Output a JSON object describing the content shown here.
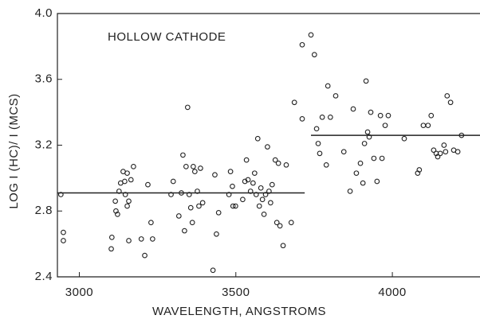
{
  "chart_data": {
    "type": "scatter",
    "annotation": "HOLLOW CATHODE",
    "x_label": "WAVELENGTH, ANGSTROMS",
    "y_label": "LOG I (HC)/ I (MCS)",
    "xlim": [
      2930,
      4280
    ],
    "ylim": [
      2.4,
      4.0
    ],
    "xticks": [
      3000,
      3500,
      4000
    ],
    "yticks": [
      2.4,
      2.8,
      3.2,
      3.6,
      {
        "value": 4,
        "label": "4.0"
      }
    ],
    "color": "#222222",
    "x": [
      2941,
      2949,
      2949,
      3102,
      3104,
      3115,
      3117,
      3122,
      3127,
      3132,
      3140,
      3145,
      3147,
      3153,
      3153,
      3158,
      3165,
      3158,
      3173,
      3198,
      3209,
      3219,
      3229,
      3234,
      3293,
      3300,
      3318,
      3326,
      3331,
      3336,
      3341,
      3346,
      3351,
      3356,
      3361,
      3364,
      3369,
      3377,
      3382,
      3387,
      3394,
      3427,
      3433,
      3438,
      3445,
      3478,
      3483,
      3489,
      3491,
      3499,
      3522,
      3529,
      3534,
      3539,
      3547,
      3555,
      3560,
      3565,
      3570,
      3575,
      3580,
      3585,
      3590,
      3595,
      3601,
      3606,
      3611,
      3616,
      3626,
      3631,
      3636,
      3641,
      3651,
      3661,
      3677,
      3687,
      3712,
      3712,
      3740,
      3751,
      3758,
      3763,
      3768,
      3776,
      3789,
      3794,
      3802,
      3819,
      3845,
      3865,
      3875,
      3885,
      3898,
      3906,
      3911,
      3916,
      3921,
      3926,
      3931,
      3941,
      3951,
      3962,
      3967,
      3977,
      3987,
      4038,
      4081,
      4086,
      4099,
      4114,
      4124,
      4132,
      4140,
      4145,
      4153,
      4165,
      4170,
      4175,
      4186,
      4196,
      4209,
      4221
    ],
    "values": [
      2.9,
      2.67,
      2.62,
      2.57,
      2.64,
      2.86,
      2.8,
      2.78,
      2.92,
      2.97,
      3.04,
      2.98,
      2.9,
      3.03,
      2.83,
      2.86,
      2.99,
      2.62,
      3.07,
      2.63,
      2.53,
      2.96,
      2.73,
      2.63,
      2.9,
      2.98,
      2.77,
      2.91,
      3.14,
      2.68,
      3.07,
      3.43,
      2.9,
      2.82,
      2.73,
      3.07,
      3.04,
      2.92,
      2.83,
      3.06,
      2.85,
      2.44,
      3.02,
      2.66,
      2.79,
      2.9,
      3.04,
      2.95,
      2.83,
      2.83,
      2.87,
      2.98,
      3.11,
      2.99,
      2.92,
      2.97,
      3.03,
      2.9,
      3.24,
      2.83,
      2.94,
      2.87,
      2.78,
      2.9,
      3.19,
      2.92,
      2.85,
      2.96,
      3.11,
      2.73,
      3.09,
      2.71,
      2.59,
      3.08,
      2.73,
      3.46,
      3.36,
      3.81,
      3.87,
      3.75,
      3.3,
      3.21,
      3.15,
      3.37,
      3.08,
      3.56,
      3.37,
      3.5,
      3.16,
      2.92,
      3.42,
      3.03,
      3.09,
      2.97,
      3.21,
      3.59,
      3.28,
      3.25,
      3.4,
      3.12,
      2.98,
      3.38,
      3.12,
      3.32,
      3.38,
      3.24,
      3.03,
      3.05,
      3.32,
      3.32,
      3.38,
      3.17,
      3.15,
      3.13,
      3.15,
      3.2,
      3.16,
      3.5,
      3.46,
      3.17,
      3.16,
      3.26
    ],
    "lines": [
      {
        "x": [
          2930,
          3720
        ],
        "values": [
          2.91,
          2.91
        ]
      },
      {
        "x": [
          3740,
          4280
        ],
        "values": [
          3.26,
          3.26
        ]
      }
    ]
  }
}
